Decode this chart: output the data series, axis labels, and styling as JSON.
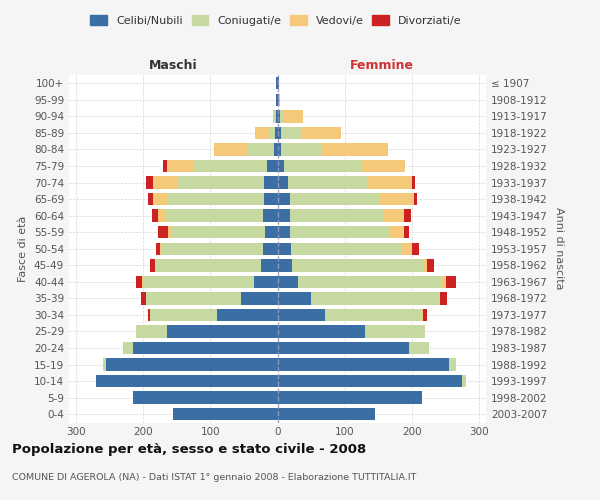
{
  "age_groups": [
    "0-4",
    "5-9",
    "10-14",
    "15-19",
    "20-24",
    "25-29",
    "30-34",
    "35-39",
    "40-44",
    "45-49",
    "50-54",
    "55-59",
    "60-64",
    "65-69",
    "70-74",
    "75-79",
    "80-84",
    "85-89",
    "90-94",
    "95-99",
    "100+"
  ],
  "birth_years": [
    "2003-2007",
    "1998-2002",
    "1993-1997",
    "1988-1992",
    "1983-1987",
    "1978-1982",
    "1973-1977",
    "1968-1972",
    "1963-1967",
    "1958-1962",
    "1953-1957",
    "1948-1952",
    "1943-1947",
    "1938-1942",
    "1933-1937",
    "1928-1932",
    "1923-1927",
    "1918-1922",
    "1913-1917",
    "1908-1912",
    "≤ 1907"
  ],
  "colors": {
    "celibi": "#3a6ea5",
    "coniugati": "#c5d9a0",
    "vedovi": "#f5c97a",
    "divorziati": "#cc2222"
  },
  "males": {
    "celibi": [
      155,
      215,
      270,
      255,
      215,
      165,
      90,
      55,
      35,
      25,
      22,
      18,
      22,
      20,
      20,
      15,
      5,
      3,
      2,
      2,
      2
    ],
    "coniugati": [
      0,
      0,
      0,
      5,
      15,
      45,
      100,
      140,
      165,
      155,
      150,
      140,
      145,
      145,
      130,
      110,
      40,
      10,
      3,
      0,
      0
    ],
    "vedovi": [
      0,
      0,
      0,
      0,
      0,
      0,
      0,
      0,
      2,
      2,
      3,
      5,
      10,
      20,
      35,
      40,
      50,
      20,
      2,
      0,
      0
    ],
    "divorziati": [
      0,
      0,
      0,
      0,
      0,
      0,
      3,
      8,
      8,
      8,
      5,
      15,
      10,
      8,
      10,
      5,
      0,
      0,
      0,
      0,
      0
    ]
  },
  "females": {
    "celibi": [
      145,
      215,
      275,
      255,
      195,
      130,
      70,
      50,
      30,
      22,
      20,
      18,
      18,
      18,
      15,
      10,
      5,
      5,
      3,
      2,
      2
    ],
    "coniugati": [
      0,
      0,
      5,
      10,
      30,
      90,
      145,
      190,
      215,
      195,
      165,
      150,
      140,
      135,
      120,
      115,
      60,
      30,
      5,
      0,
      0
    ],
    "vedovi": [
      0,
      0,
      0,
      0,
      0,
      0,
      2,
      2,
      5,
      5,
      15,
      20,
      30,
      50,
      65,
      65,
      100,
      60,
      30,
      2,
      0
    ],
    "divorziati": [
      0,
      0,
      0,
      0,
      0,
      0,
      5,
      10,
      15,
      10,
      10,
      8,
      10,
      5,
      5,
      0,
      0,
      0,
      0,
      0,
      0
    ]
  },
  "xlim": 310,
  "title": "Popolazione per età, sesso e stato civile - 2008",
  "subtitle": "COMUNE DI AGEROLA (NA) - Dati ISTAT 1° gennaio 2008 - Elaborazione TUTTITALIA.IT",
  "xlabel_left": "Maschi",
  "xlabel_right": "Femmine",
  "ylabel_left": "Fasce di età",
  "ylabel_right": "Anni di nascita",
  "legend_labels": [
    "Celibi/Nubili",
    "Coniugati/e",
    "Vedovi/e",
    "Divorziati/e"
  ],
  "bg_color": "#f5f5f5",
  "plot_bg": "#ffffff"
}
